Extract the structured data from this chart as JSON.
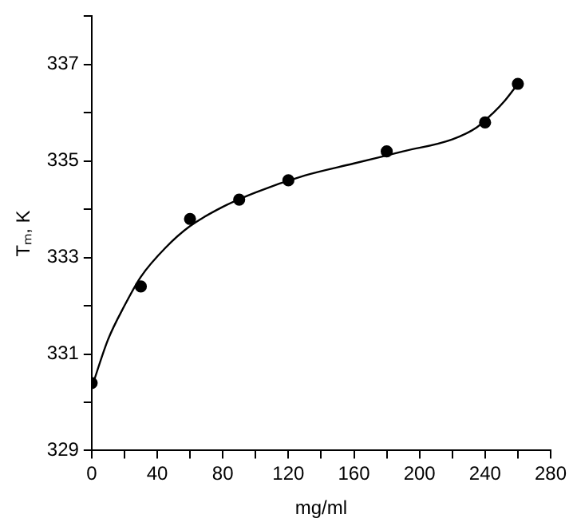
{
  "chart_data": {
    "type": "scatter",
    "xlabel": "mg/ml",
    "ylabel": "Tₘ, K",
    "xlim": [
      0,
      280
    ],
    "ylim": [
      329,
      338
    ],
    "xticks": [
      0,
      {
        "value": 20,
        "label": null
      },
      40,
      {
        "value": 60,
        "label": null
      },
      80,
      {
        "value": 100,
        "label": null
      },
      120,
      {
        "value": 140,
        "label": null
      },
      160,
      {
        "value": 180,
        "label": null
      },
      200,
      {
        "value": 220,
        "label": null
      },
      240,
      {
        "value": 260,
        "label": null
      },
      280
    ],
    "yticks": [
      329,
      {
        "value": 330,
        "label": null
      },
      331,
      {
        "value": 332,
        "label": null
      },
      333,
      {
        "value": 334,
        "label": null
      },
      335,
      {
        "value": 336,
        "label": null
      },
      337,
      {
        "value": 338,
        "label": null
      }
    ],
    "grid": false,
    "legend": false,
    "series": [
      {
        "type": "scatter",
        "color": "#000000",
        "marker": "circle",
        "x": [
          0,
          30,
          60,
          90,
          120,
          180,
          240,
          260
        ],
        "values": [
          330.4,
          332.4,
          333.8,
          334.2,
          334.6,
          335.2,
          335.8,
          336.6
        ]
      },
      {
        "type": "line",
        "color": "#000000",
        "marker": "none",
        "line_style": "solid",
        "x": [
          0,
          10,
          20,
          30,
          45,
          60,
          80,
          100,
          130,
          160,
          190,
          220,
          235,
          245,
          252,
          260
        ],
        "values": [
          330.3,
          331.3,
          332.0,
          332.6,
          333.2,
          333.65,
          334.05,
          334.35,
          334.7,
          334.95,
          335.2,
          335.45,
          335.7,
          336.0,
          336.25,
          336.6
        ]
      }
    ]
  }
}
